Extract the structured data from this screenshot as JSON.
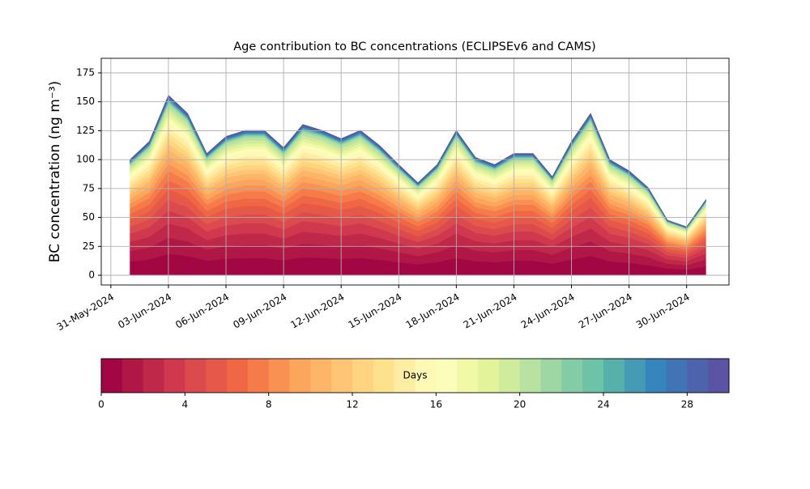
{
  "chart_data": {
    "type": "stacked_area",
    "title": "Age contribution to BC concentrations (ECLIPSEv6 and CAMS)",
    "y_label": "BC concentration (ng m⁻³)",
    "x": [
      "2024-06-01",
      "2024-06-02",
      "2024-06-03",
      "2024-06-04",
      "2024-06-05",
      "2024-06-06",
      "2024-06-07",
      "2024-06-08",
      "2024-06-09",
      "2024-06-10",
      "2024-06-11",
      "2024-06-12",
      "2024-06-13",
      "2024-06-14",
      "2024-06-15",
      "2024-06-16",
      "2024-06-17",
      "2024-06-18",
      "2024-06-19",
      "2024-06-20",
      "2024-06-21",
      "2024-06-22",
      "2024-06-23",
      "2024-06-24",
      "2024-06-25",
      "2024-06-26",
      "2024-06-27",
      "2024-06-28",
      "2024-06-29",
      "2024-06-30",
      "2024-07-01"
    ],
    "xlim": [
      "2024-05-30T12:00:00Z",
      "2024-07-02T05:00:00Z"
    ],
    "xticks": [
      {
        "value": "2024-05-31",
        "label": "31-May-2024"
      },
      {
        "value": "2024-06-03",
        "label": "03-Jun-2024"
      },
      {
        "value": "2024-06-06",
        "label": "06-Jun-2024"
      },
      {
        "value": "2024-06-09",
        "label": "09-Jun-2024"
      },
      {
        "value": "2024-06-12",
        "label": "12-Jun-2024"
      },
      {
        "value": "2024-06-15",
        "label": "15-Jun-2024"
      },
      {
        "value": "2024-06-18",
        "label": "18-Jun-2024"
      },
      {
        "value": "2024-06-21",
        "label": "21-Jun-2024"
      },
      {
        "value": "2024-06-24",
        "label": "24-Jun-2024"
      },
      {
        "value": "2024-06-27",
        "label": "27-Jun-2024"
      },
      {
        "value": "2024-06-30",
        "label": "30-Jun-2024"
      }
    ],
    "ylim": [
      -8.4,
      187.6
    ],
    "yticks": [
      0,
      25,
      50,
      75,
      100,
      125,
      150,
      175
    ],
    "grid": true,
    "colorbar": {
      "label": "Days",
      "lim": [
        0,
        30
      ],
      "ticks": [
        0,
        4,
        8,
        12,
        16,
        20,
        24,
        28
      ]
    },
    "series": [
      {
        "color": "#a20643",
        "values": [
          12,
          13.8,
          18.6,
          16.8,
          12.6,
          14.4,
          15,
          15,
          13.2,
          15.6,
          15,
          14.2,
          15,
          13.4,
          11.4,
          9.6,
          11.4,
          15,
          12.2,
          11.4,
          12.6,
          12.6,
          10.2,
          13.8,
          16.8,
          12,
          10.8,
          9,
          5.8,
          5,
          7.8
        ]
      },
      {
        "color": "#b01747",
        "values": [
          9,
          10.4,
          14,
          12.6,
          9.5,
          10.8,
          11.3,
          11.3,
          9.9,
          11.7,
          11.3,
          10.6,
          11.3,
          10.1,
          8.6,
          7.2,
          8.6,
          11.3,
          9.2,
          8.6,
          9.5,
          9.5,
          7.7,
          10.4,
          12.6,
          9,
          8.1,
          6.8,
          4.3,
          3.8,
          5.9
        ]
      },
      {
        "color": "#c0284a",
        "values": [
          8,
          9.2,
          12.4,
          11.2,
          8.4,
          9.6,
          10,
          10,
          8.8,
          10.4,
          10,
          9.4,
          10,
          9,
          7.6,
          6.4,
          7.6,
          10,
          8.2,
          7.6,
          8.4,
          8.4,
          6.8,
          9.2,
          11.2,
          8,
          7.2,
          6,
          3.8,
          3.4,
          5.2
        ]
      },
      {
        "color": "#d0384e",
        "values": [
          7,
          8.1,
          10.9,
          9.8,
          7.4,
          8.4,
          8.8,
          8.8,
          7.7,
          9.1,
          8.8,
          8.3,
          8.8,
          7.8,
          6.7,
          5.6,
          6.7,
          8.8,
          7.1,
          6.7,
          7.4,
          7.4,
          6,
          8.1,
          9.8,
          7,
          6.3,
          5.3,
          3.4,
          2.9,
          4.6
        ]
      },
      {
        "color": "#db4a4c",
        "values": [
          6,
          6.9,
          9.3,
          8.4,
          6.3,
          7.2,
          7.5,
          7.5,
          6.6,
          7.8,
          7.5,
          7.1,
          7.5,
          6.7,
          5.7,
          4.8,
          5.7,
          7.5,
          6.1,
          5.7,
          6.3,
          6.3,
          5.1,
          6.9,
          8.4,
          6,
          5.4,
          4.5,
          2.9,
          2.5,
          3.9
        ]
      },
      {
        "color": "#e65848",
        "values": [
          6,
          6.9,
          9.3,
          8.4,
          6.3,
          7.2,
          7.5,
          7.5,
          6.6,
          7.8,
          7.5,
          7.1,
          7.5,
          6.7,
          5.7,
          4.8,
          5.7,
          7.5,
          6.1,
          5.7,
          6.3,
          6.3,
          5.1,
          6.9,
          8.4,
          6,
          5.4,
          4.5,
          2.9,
          2.5,
          3.9
        ]
      },
      {
        "color": "#f06744",
        "values": [
          5,
          5.8,
          7.8,
          7,
          5.3,
          6,
          6.3,
          6.3,
          5.5,
          6.5,
          6.3,
          5.9,
          6.3,
          5.6,
          4.8,
          4,
          4.8,
          6.3,
          5.1,
          4.8,
          5.3,
          5.3,
          4.3,
          5.8,
          7,
          5,
          4.5,
          3.8,
          2.4,
          2.1,
          3.3
        ]
      },
      {
        "color": "#f67b4a",
        "values": [
          5,
          5.8,
          7.8,
          7,
          5.3,
          6,
          6.3,
          6.3,
          5.5,
          6.5,
          6.3,
          5.9,
          6.3,
          5.6,
          4.8,
          4,
          4.8,
          6.3,
          5.1,
          4.8,
          5.3,
          5.3,
          4.3,
          5.8,
          7,
          5,
          4.5,
          3.8,
          2.4,
          2.1,
          3.3
        ]
      },
      {
        "color": "#f99153",
        "values": [
          4,
          4.6,
          6.2,
          5.6,
          4.2,
          4.8,
          5,
          5,
          4.4,
          5.2,
          5,
          4.7,
          5,
          4.5,
          3.8,
          3.2,
          3.8,
          5,
          4.1,
          3.8,
          4.2,
          4.2,
          3.4,
          4.6,
          5.6,
          4,
          3.6,
          3,
          1.9,
          1.7,
          2.6
        ]
      },
      {
        "color": "#fca55d",
        "values": [
          4,
          4.6,
          6.2,
          5.6,
          4.2,
          4.8,
          5,
          5,
          4.4,
          5.2,
          5,
          4.7,
          5,
          4.5,
          3.8,
          3.2,
          3.8,
          5,
          4.1,
          3.8,
          4.2,
          4.2,
          3.4,
          4.6,
          5.6,
          4,
          3.6,
          3,
          1.9,
          1.7,
          2.6
        ]
      },
      {
        "color": "#fdb667",
        "values": [
          4,
          4.6,
          6.2,
          5.6,
          4.2,
          4.8,
          5,
          5,
          4.4,
          5.2,
          5,
          4.7,
          5,
          4.5,
          3.8,
          3.2,
          3.8,
          5,
          4.1,
          3.8,
          4.2,
          4.2,
          3.4,
          4.6,
          5.6,
          4,
          3.6,
          3,
          1.9,
          1.7,
          2.6
        ]
      },
      {
        "color": "#fdc574",
        "values": [
          3,
          3.5,
          4.7,
          4.2,
          3.2,
          3.6,
          3.8,
          3.8,
          3.3,
          3.9,
          3.8,
          3.5,
          3.8,
          3.4,
          2.9,
          2.4,
          2.9,
          3.8,
          3.1,
          2.9,
          3.2,
          3.2,
          2.6,
          3.5,
          4.2,
          3,
          2.7,
          2.3,
          1.4,
          1.3,
          2
        ]
      },
      {
        "color": "#fed481",
        "values": [
          3,
          3.5,
          4.7,
          4.2,
          3.2,
          3.6,
          3.8,
          3.8,
          3.3,
          3.9,
          3.8,
          3.5,
          3.8,
          3.4,
          2.9,
          2.4,
          2.9,
          3.8,
          3.1,
          2.9,
          3.2,
          3.2,
          2.6,
          3.5,
          4.2,
          3,
          2.7,
          2.3,
          1.4,
          1.3,
          2
        ]
      },
      {
        "color": "#fee18d",
        "values": [
          3,
          3.5,
          4.7,
          4.2,
          3.2,
          3.6,
          3.8,
          3.8,
          3.3,
          3.9,
          3.8,
          3.5,
          3.8,
          3.4,
          2.9,
          2.4,
          2.9,
          3.8,
          3.1,
          2.9,
          3.2,
          3.2,
          2.6,
          3.5,
          4.2,
          3,
          2.7,
          2.3,
          1.4,
          1.3,
          2
        ]
      },
      {
        "color": "#feeda2",
        "values": [
          3,
          3.5,
          4.7,
          4.2,
          3.2,
          3.6,
          3.8,
          3.8,
          3.3,
          3.9,
          3.8,
          3.5,
          3.8,
          3.4,
          2.9,
          2.4,
          2.9,
          3.8,
          3.1,
          2.9,
          3.2,
          3.2,
          2.6,
          3.5,
          4.2,
          3,
          2.7,
          2.3,
          1.4,
          1.3,
          2
        ]
      },
      {
        "color": "#fff8b6",
        "values": [
          3,
          3.5,
          4.7,
          4.2,
          3.2,
          3.6,
          3.8,
          3.8,
          3.3,
          3.9,
          3.8,
          3.5,
          3.8,
          3.4,
          2.9,
          2.4,
          2.9,
          3.8,
          3.1,
          2.9,
          3.2,
          3.2,
          2.6,
          3.5,
          4.2,
          3,
          2.7,
          2.3,
          1.4,
          1.3,
          2
        ]
      },
      {
        "color": "#fbfdba",
        "values": [
          2,
          2.3,
          3.1,
          2.8,
          2.1,
          2.4,
          2.5,
          2.5,
          2.2,
          2.6,
          2.5,
          2.4,
          2.5,
          2.2,
          1.9,
          1.6,
          1.9,
          2.5,
          2,
          1.9,
          2.1,
          2.1,
          1.7,
          2.3,
          2.8,
          2,
          1.8,
          1.5,
          1,
          0.8,
          1.3
        ]
      },
      {
        "color": "#f1f9a7",
        "values": [
          2,
          2.3,
          3.1,
          2.8,
          2.1,
          2.4,
          2.5,
          2.5,
          2.2,
          2.6,
          2.5,
          2.4,
          2.5,
          2.2,
          1.9,
          1.6,
          1.9,
          2.5,
          2,
          1.9,
          2.1,
          2.1,
          1.7,
          2.3,
          2.8,
          2,
          1.8,
          1.5,
          1,
          0.8,
          1.3
        ]
      },
      {
        "color": "#e3f399",
        "values": [
          2,
          2.3,
          3.1,
          2.8,
          2.1,
          2.4,
          2.5,
          2.5,
          2.2,
          2.6,
          2.5,
          2.4,
          2.5,
          2.2,
          1.9,
          1.6,
          1.9,
          2.5,
          2,
          1.9,
          2.1,
          2.1,
          1.7,
          2.3,
          2.8,
          2,
          1.8,
          1.5,
          1,
          0.8,
          1.3
        ]
      },
      {
        "color": "#cfeb9c",
        "values": [
          2,
          2.3,
          3.1,
          2.8,
          2.1,
          2.4,
          2.5,
          2.5,
          2.2,
          2.6,
          2.5,
          2.4,
          2.5,
          2.2,
          1.9,
          1.6,
          1.9,
          2.5,
          2,
          1.9,
          2.1,
          2.1,
          1.7,
          2.3,
          2.8,
          2,
          1.8,
          1.5,
          1,
          0.8,
          1.3
        ]
      },
      {
        "color": "#b8e2a1",
        "values": [
          2,
          2.3,
          3.1,
          2.8,
          2.1,
          2.4,
          2.5,
          2.5,
          2.2,
          2.6,
          2.5,
          2.4,
          2.5,
          2.2,
          1.9,
          1.6,
          1.9,
          2.5,
          2,
          1.9,
          2.1,
          2.1,
          1.7,
          2.3,
          2.8,
          2,
          1.8,
          1.5,
          1,
          0.8,
          1.3
        ]
      },
      {
        "color": "#9fd7a4",
        "values": [
          1,
          1.2,
          1.6,
          1.4,
          1.1,
          1.2,
          1.3,
          1.3,
          1.1,
          1.3,
          1.3,
          1.2,
          1.3,
          1.1,
          1,
          0.8,
          1,
          1.3,
          1,
          1,
          1.1,
          1.1,
          0.9,
          1.2,
          1.4,
          1,
          0.9,
          0.8,
          0.5,
          0.4,
          0.7
        ]
      },
      {
        "color": "#84cca5",
        "values": [
          0.5,
          0.6,
          0.8,
          0.7,
          0.5,
          0.6,
          0.6,
          0.6,
          0.6,
          0.7,
          0.6,
          0.6,
          0.6,
          0.6,
          0.5,
          0.4,
          0.5,
          0.6,
          0.5,
          0.5,
          0.5,
          0.5,
          0.4,
          0.6,
          0.7,
          0.5,
          0.5,
          0.4,
          0.2,
          0.2,
          0.3
        ]
      },
      {
        "color": "#6cc3a6",
        "values": [
          0.5,
          0.6,
          0.8,
          0.7,
          0.5,
          0.6,
          0.6,
          0.6,
          0.6,
          0.7,
          0.6,
          0.6,
          0.6,
          0.6,
          0.5,
          0.4,
          0.5,
          0.6,
          0.5,
          0.5,
          0.5,
          0.5,
          0.4,
          0.6,
          0.7,
          0.5,
          0.5,
          0.4,
          0.2,
          0.2,
          0.3
        ]
      },
      {
        "color": "#58b0ab",
        "values": [
          0.5,
          0.6,
          0.8,
          0.7,
          0.5,
          0.6,
          0.6,
          0.6,
          0.6,
          0.7,
          0.6,
          0.6,
          0.6,
          0.6,
          0.5,
          0.4,
          0.5,
          0.6,
          0.5,
          0.5,
          0.5,
          0.5,
          0.4,
          0.6,
          0.7,
          0.5,
          0.5,
          0.4,
          0.2,
          0.2,
          0.3
        ]
      },
      {
        "color": "#459bb4",
        "values": [
          0.5,
          0.6,
          0.8,
          0.7,
          0.5,
          0.6,
          0.6,
          0.6,
          0.6,
          0.7,
          0.6,
          0.6,
          0.6,
          0.6,
          0.5,
          0.4,
          0.5,
          0.6,
          0.5,
          0.5,
          0.5,
          0.5,
          0.4,
          0.6,
          0.7,
          0.5,
          0.5,
          0.4,
          0.2,
          0.2,
          0.3
        ]
      },
      {
        "color": "#3685bc",
        "values": [
          0.5,
          0.6,
          0.8,
          0.7,
          0.5,
          0.6,
          0.6,
          0.6,
          0.6,
          0.7,
          0.6,
          0.6,
          0.6,
          0.6,
          0.5,
          0.4,
          0.5,
          0.6,
          0.5,
          0.5,
          0.5,
          0.5,
          0.4,
          0.6,
          0.7,
          0.5,
          0.5,
          0.4,
          0.2,
          0.2,
          0.3
        ]
      },
      {
        "color": "#3f75b5",
        "values": [
          0.5,
          0.6,
          0.8,
          0.7,
          0.5,
          0.6,
          0.6,
          0.6,
          0.6,
          0.7,
          0.6,
          0.6,
          0.6,
          0.6,
          0.5,
          0.4,
          0.5,
          0.6,
          0.5,
          0.5,
          0.5,
          0.5,
          0.4,
          0.6,
          0.7,
          0.5,
          0.5,
          0.4,
          0.2,
          0.2,
          0.3
        ]
      },
      {
        "color": "#4d63ab",
        "values": [
          0.5,
          0.6,
          0.8,
          0.7,
          0.5,
          0.6,
          0.6,
          0.6,
          0.6,
          0.7,
          0.6,
          0.6,
          0.6,
          0.6,
          0.5,
          0.4,
          0.5,
          0.6,
          0.5,
          0.5,
          0.5,
          0.5,
          0.4,
          0.6,
          0.7,
          0.5,
          0.5,
          0.4,
          0.2,
          0.2,
          0.3
        ]
      },
      {
        "color": "#5b53a4",
        "values": [
          0.5,
          0.6,
          0.8,
          0.7,
          0.5,
          0.6,
          0.6,
          0.6,
          0.6,
          0.7,
          0.6,
          0.6,
          0.6,
          0.6,
          0.5,
          0.4,
          0.5,
          0.6,
          0.5,
          0.5,
          0.5,
          0.5,
          0.4,
          0.6,
          0.7,
          0.5,
          0.5,
          0.4,
          0.2,
          0.2,
          0.3
        ]
      }
    ]
  }
}
